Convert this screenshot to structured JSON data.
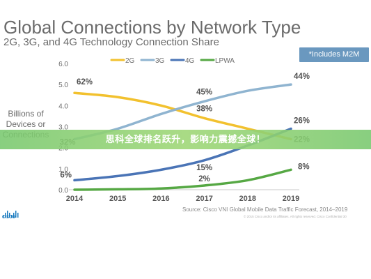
{
  "header": {
    "title": "Global Connections by Network Type",
    "subtitle": "2G, 3G, and 4G Technology Connection Share",
    "note": "*Includes M2M"
  },
  "banner": {
    "text": "思科全球排名跃升，影响力震撼全球！"
  },
  "footer": {
    "source": "Source: Cisco VNI Global Mobile Data Traffic Forecast, 2014–2019",
    "fine_print": "© 2015 Cisco and/or its affiliates. All rights reserved.     Cisco Confidential     30",
    "logo_text": "CISCO"
  },
  "chart_data": {
    "type": "line",
    "ylabel": "Billions of Devices or Connections",
    "xlabel": "",
    "x": [
      "2014",
      "2015",
      "2016",
      "2017",
      "2018",
      "2019"
    ],
    "ylim": [
      0,
      6.0
    ],
    "yticks": [
      "0.0",
      "1.0",
      "2.0",
      "3.0",
      "4.0",
      "5.0",
      "6.0"
    ],
    "grid": false,
    "legend_position": "top",
    "series": [
      {
        "name": "2G",
        "color": "#f2c12e",
        "values": [
          4.6,
          4.4,
          4.0,
          3.4,
          2.9,
          2.4
        ]
      },
      {
        "name": "3G",
        "color": "#8fb4d0",
        "values": [
          2.4,
          2.9,
          3.6,
          4.2,
          4.7,
          5.0
        ]
      },
      {
        "name": "4G",
        "color": "#4a74b6",
        "values": [
          0.45,
          0.65,
          0.95,
          1.4,
          2.1,
          2.9
        ]
      },
      {
        "name": "LPWA",
        "color": "#56a844",
        "values": [
          0.0,
          0.02,
          0.06,
          0.2,
          0.45,
          0.95
        ]
      }
    ],
    "annotations": [
      {
        "text": "62%",
        "x": "2014",
        "y": 4.6,
        "series": "2G"
      },
      {
        "text": "45%",
        "x": "2017",
        "y": 4.2,
        "series": "3G"
      },
      {
        "text": "44%",
        "x": "2019",
        "y": 5.0,
        "series": "3G"
      },
      {
        "text": "38%",
        "x": "2017",
        "y": 3.4,
        "series": "2G"
      },
      {
        "text": "26%",
        "x": "2019",
        "y": 2.9,
        "series": "4G"
      },
      {
        "text": "32%",
        "x": "2014",
        "y": 2.4,
        "series": "3G"
      },
      {
        "text": "22%",
        "x": "2019",
        "y": 2.4,
        "series": "2G"
      },
      {
        "text": "15%",
        "x": "2017",
        "y": 1.4,
        "series": "4G"
      },
      {
        "text": "6%",
        "x": "2014",
        "y": 0.45,
        "series": "4G"
      },
      {
        "text": "2%",
        "x": "2017",
        "y": 0.2,
        "series": "LPWA"
      },
      {
        "text": "8%",
        "x": "2019",
        "y": 0.95,
        "series": "LPWA"
      }
    ]
  }
}
